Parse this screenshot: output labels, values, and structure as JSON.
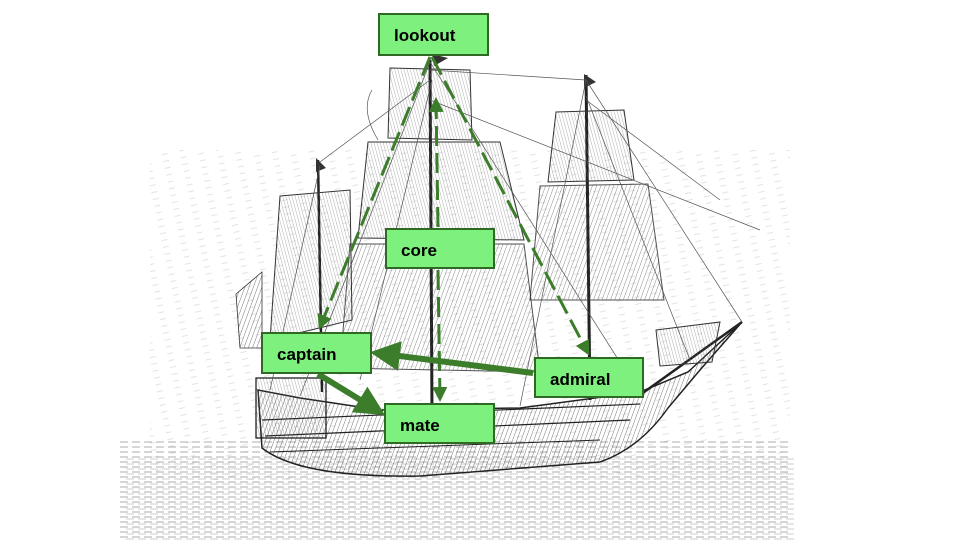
{
  "diagram": {
    "background": "ship-engraving",
    "node_fill": "#7ef07e",
    "node_border": "#2e6a24",
    "edge_color": "#3b7d2a",
    "nodes": [
      {
        "id": "lookout",
        "label": "lookout"
      },
      {
        "id": "core",
        "label": "core"
      },
      {
        "id": "captain",
        "label": "captain"
      },
      {
        "id": "admiral",
        "label": "admiral"
      },
      {
        "id": "mate",
        "label": "mate"
      }
    ],
    "edges": [
      {
        "from": "lookout",
        "to": "captain",
        "style": "dashed"
      },
      {
        "from": "lookout",
        "to": "admiral",
        "style": "dashed"
      },
      {
        "from": "core",
        "to": "lookout",
        "style": "dashed"
      },
      {
        "from": "core",
        "to": "mate",
        "style": "dashed"
      },
      {
        "from": "admiral",
        "to": "captain",
        "style": "solid"
      },
      {
        "from": "captain",
        "to": "mate",
        "style": "solid"
      }
    ]
  }
}
